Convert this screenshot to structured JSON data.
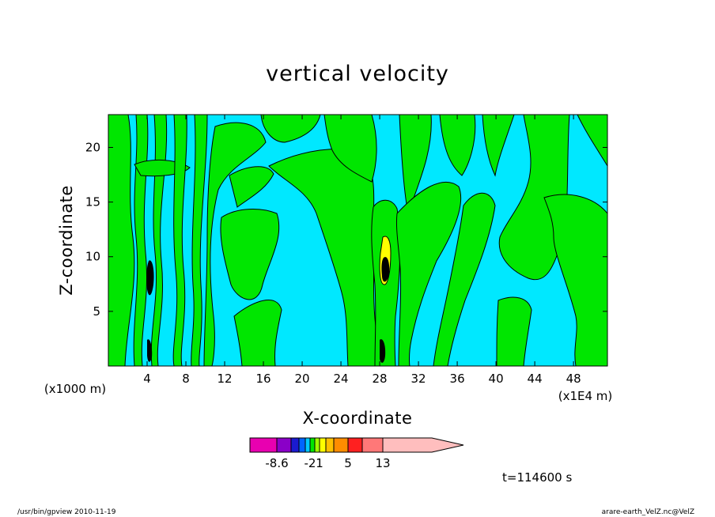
{
  "chart_data": {
    "type": "contour",
    "title": "vertical velocity",
    "xlabel": "X-coordinate",
    "ylabel": "Z-coordinate",
    "x_unit_left": "(x1000 m)",
    "x_unit_right": "(x1E4 m)",
    "xlim": [
      0,
      51.5
    ],
    "ylim": [
      0,
      23
    ],
    "x_ticks": [
      4,
      8,
      12,
      16,
      20,
      24,
      28,
      32,
      36,
      40,
      44,
      48
    ],
    "y_ticks": [
      5,
      10,
      15,
      20
    ],
    "field_colors": {
      "negative": "#00e8ff",
      "positive": "#00e600",
      "contour_line": "#000000"
    },
    "colorbar": {
      "colors": [
        "#e800b0",
        "#8a00c8",
        "#1a1ad0",
        "#0064ff",
        "#00c8ff",
        "#00e600",
        "#a0ff00",
        "#ffff00",
        "#ffc000",
        "#ff8c00",
        "#ff2020",
        "#ff7878",
        "#ffbebe"
      ],
      "labels": [
        "-8.6",
        "-2",
        "1",
        "5",
        "13"
      ]
    },
    "time_label": "t=114600 s",
    "footer_left": "/usr/bin/gpview   2010-11-19",
    "footer_right": "arare-earth_VelZ.nc@VelZ"
  }
}
